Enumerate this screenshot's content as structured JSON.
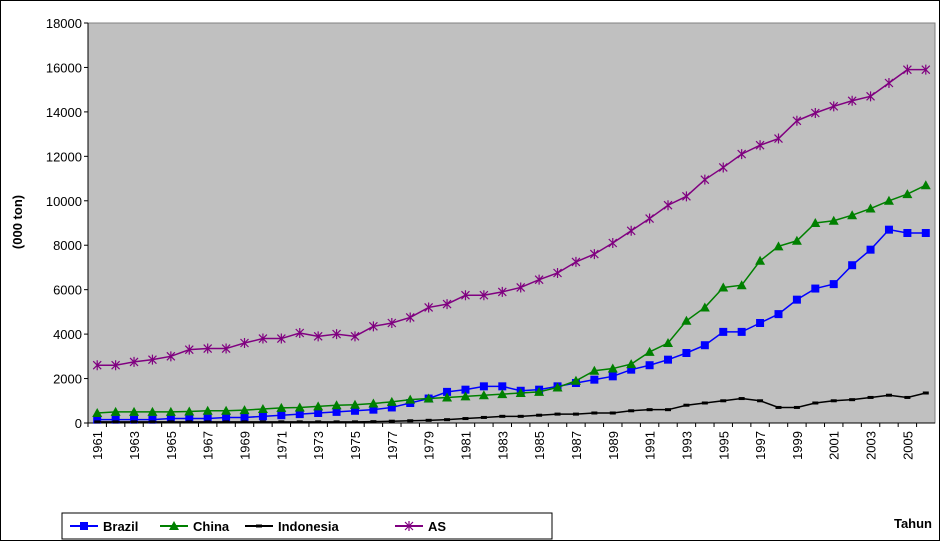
{
  "chart_data": {
    "type": "line",
    "y_label": "(000 ton)",
    "x_label": "Tahun",
    "categories": [
      "1961",
      null,
      "1963",
      null,
      "1965",
      null,
      "1967",
      null,
      "1969",
      null,
      "1971",
      null,
      "1973",
      null,
      "1975",
      null,
      "1977",
      null,
      "1979",
      null,
      "1981",
      null,
      "1983",
      null,
      "1985",
      null,
      "1987",
      null,
      "1989",
      null,
      "1991",
      null,
      "1993",
      null,
      "1995",
      null,
      "1997",
      null,
      "1999",
      null,
      "2001",
      null,
      "2003",
      null,
      "2005",
      null
    ],
    "series": [
      {
        "name": "Brazil",
        "color": "#0000ff",
        "marker": "square",
        "values": [
          150,
          150,
          150,
          150,
          200,
          200,
          200,
          250,
          250,
          300,
          350,
          400,
          450,
          500,
          550,
          600,
          700,
          900,
          1100,
          1400,
          1500,
          1650,
          1650,
          1450,
          1500,
          1650,
          1800,
          1950,
          2100,
          2400,
          2600,
          2850,
          3150,
          3500,
          4100,
          4100,
          4500,
          4900,
          5550,
          6050,
          6250,
          7100,
          7800,
          8700,
          8550,
          8550
        ]
      },
      {
        "name": "China",
        "color": "#008000",
        "marker": "triangle",
        "values": [
          450,
          500,
          500,
          500,
          500,
          520,
          550,
          550,
          580,
          630,
          680,
          700,
          750,
          800,
          820,
          880,
          950,
          1050,
          1100,
          1150,
          1200,
          1250,
          1300,
          1350,
          1400,
          1600,
          1900,
          2350,
          2450,
          2650,
          3200,
          3600,
          4600,
          5200,
          6100,
          6200,
          7300,
          7950,
          8200,
          9000,
          9100,
          9350,
          9650,
          10000,
          10300,
          10700
        ]
      },
      {
        "name": "Indonesia",
        "color": "#000000",
        "marker": "dash",
        "values": [
          50,
          50,
          50,
          50,
          50,
          50,
          50,
          50,
          50,
          50,
          50,
          50,
          50,
          50,
          50,
          60,
          80,
          100,
          120,
          150,
          200,
          250,
          300,
          300,
          350,
          400,
          400,
          450,
          450,
          550,
          600,
          600,
          800,
          900,
          1000,
          1100,
          1000,
          700,
          700,
          900,
          1000,
          1050,
          1150,
          1250,
          1150,
          1350
        ]
      },
      {
        "name": "AS",
        "color": "#800080",
        "marker": "star",
        "values": [
          2600,
          2600,
          2750,
          2850,
          3000,
          3300,
          3350,
          3350,
          3600,
          3800,
          3800,
          4050,
          3900,
          4000,
          3900,
          4350,
          4500,
          4750,
          5200,
          5350,
          5750,
          5750,
          5900,
          6100,
          6450,
          6750,
          7250,
          7600,
          8100,
          8650,
          9200,
          9800,
          10200,
          10950,
          11500,
          12100,
          12500,
          12800,
          13600,
          13950,
          14250,
          14500,
          14700,
          15300,
          15900,
          15900
        ]
      }
    ],
    "ylim": [
      0,
      18000
    ],
    "yticks": [
      0,
      2000,
      4000,
      6000,
      8000,
      10000,
      12000,
      14000,
      16000,
      18000
    ],
    "legend": "bottom-left",
    "plot_background": "#c0c0c0"
  }
}
